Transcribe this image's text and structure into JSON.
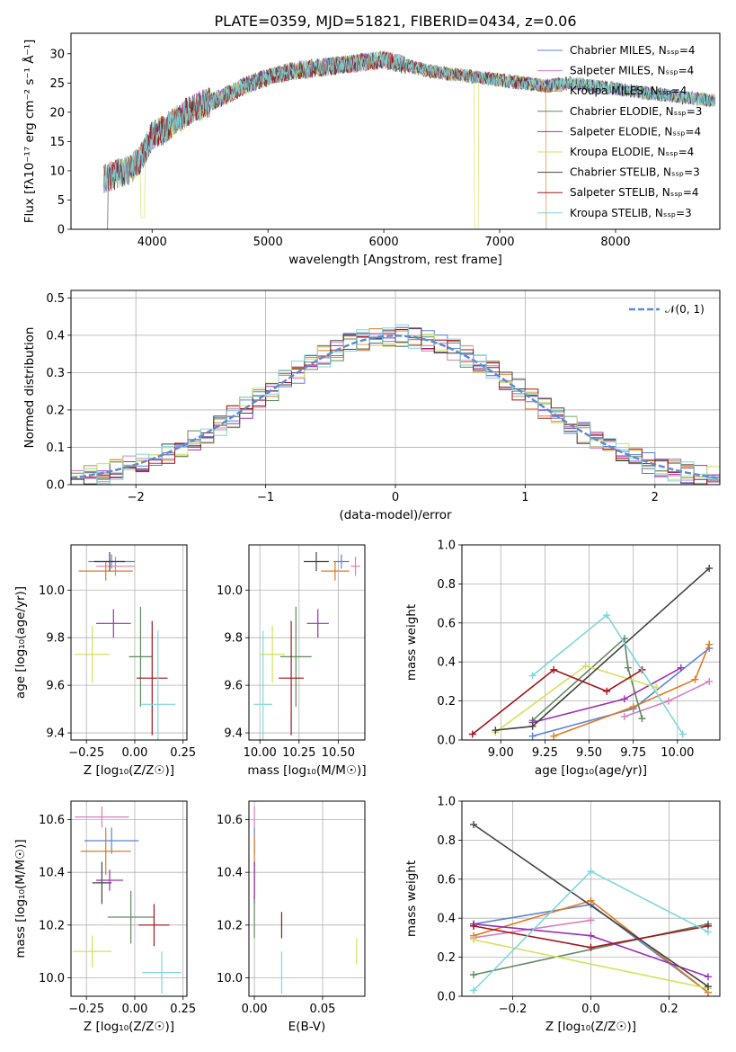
{
  "chart_data": [
    {
      "id": "spectrum",
      "type": "line",
      "title": "PLATE=0359, MJD=51821, FIBERID=0434, z=0.06",
      "xlabel": "wavelength [Angstrom, rest frame]",
      "ylabel": "Flux [fλ10⁻¹⁷ erg cm⁻² s⁻¹ Å⁻¹]",
      "xlim": [
        3300,
        8900
      ],
      "ylim": [
        0,
        33.5
      ],
      "xticks": [
        "4000",
        "5000",
        "6000",
        "7000",
        "8000"
      ],
      "yticks": [
        "0",
        "5",
        "10",
        "15",
        "20",
        "25",
        "30"
      ],
      "grid": false,
      "legend_position": "top-right",
      "data_wavelength_range": [
        3580,
        8860
      ],
      "continuum": {
        "x": [
          3580,
          3700,
          3800,
          3900,
          3950,
          4000,
          4100,
          4200,
          4300,
          4400,
          4600,
          4800,
          5000,
          5200,
          5400,
          5600,
          5800,
          6000,
          6200,
          6400,
          6600,
          6800,
          7000,
          7200,
          7400,
          7600,
          7800,
          8000,
          8200,
          8400,
          8600,
          8860
        ],
        "y": [
          8.5,
          9.5,
          10,
          12,
          14,
          16,
          17,
          18.5,
          20,
          21,
          22.5,
          24.5,
          26,
          27,
          27.5,
          28,
          28.5,
          29,
          28,
          27,
          26.5,
          26,
          25.5,
          25,
          24.5,
          25,
          24.5,
          24,
          23.5,
          23,
          22.5,
          22
        ]
      },
      "series": [
        {
          "name": "Chabrier MILES, Nₛₛₚ=4",
          "color": "#5b84d6"
        },
        {
          "name": "Salpeter MILES, Nₛₛₚ=4",
          "color": "#d77fbe"
        },
        {
          "name": "Kroupa MILES, Nₛₛₚ=4",
          "color": "#e07b22"
        },
        {
          "name": "Chabrier ELODIE, Nₛₛₚ=3",
          "color": "#5f8a5f"
        },
        {
          "name": "Salpeter ELODIE, Nₛₛₚ=4",
          "color": "#9b30b5"
        },
        {
          "name": "Kroupa ELODIE, Nₛₛₚ=4",
          "color": "#d4e25a"
        },
        {
          "name": "Chabrier STELIB, Nₛₛₚ=3",
          "color": "#444444"
        },
        {
          "name": "Salpeter STELIB, Nₛₛₚ=4",
          "color": "#a3141c"
        },
        {
          "name": "Kroupa STELIB, Nₛₛₚ=3",
          "color": "#7fd6de"
        }
      ]
    },
    {
      "id": "residuals",
      "type": "line",
      "xlabel": "(data-model)/error",
      "ylabel": "Normed distribution",
      "xlim": [
        -2.5,
        2.5
      ],
      "ylim": [
        0,
        0.52
      ],
      "xticks": [
        "−2",
        "−1",
        "0",
        "1",
        "2"
      ],
      "yticks": [
        "0.0",
        "0.1",
        "0.2",
        "0.3",
        "0.4",
        "0.5"
      ],
      "grid": true,
      "legend_position": "top-right",
      "legend": "𝒩(0, 1)",
      "gaussian": {
        "mean": 0,
        "sigma": 1
      }
    },
    {
      "id": "age-vs-z",
      "type": "scatter",
      "xlabel": "Z [log₁₀(Z/Z☉)]",
      "ylabel": "age  [log₁₀(age/yr)]",
      "xlim": [
        -0.33,
        0.27
      ],
      "ylim": [
        9.37,
        10.19
      ],
      "xticks": [
        "−0.25",
        "0.00",
        "0.25"
      ],
      "yticks": [
        "9.4",
        "9.6",
        "9.8",
        "10.0"
      ],
      "grid": true,
      "points": [
        {
          "x": -0.12,
          "xerr": 0.12,
          "y": 10.12,
          "yerr": 0.03,
          "color": "#5b84d6"
        },
        {
          "x": -0.1,
          "xerr": 0.1,
          "y": 10.1,
          "yerr": 0.04,
          "color": "#d77fbe"
        },
        {
          "x": -0.15,
          "xerr": 0.14,
          "y": 10.08,
          "yerr": 0.04,
          "color": "#e07b22"
        },
        {
          "x": -0.13,
          "xerr": 0.08,
          "y": 10.12,
          "yerr": 0.04,
          "color": "#444444"
        },
        {
          "x": 0.03,
          "xerr": 0.06,
          "y": 9.72,
          "yerr": 0.21,
          "color": "#5f8a5f"
        },
        {
          "x": -0.11,
          "xerr": 0.09,
          "y": 9.86,
          "yerr": 0.06,
          "color": "#9b30b5"
        },
        {
          "x": -0.22,
          "xerr": 0.09,
          "y": 9.73,
          "yerr": 0.12,
          "color": "#d4e25a"
        },
        {
          "x": 0.09,
          "xerr": 0.08,
          "y": 9.63,
          "yerr": 0.24,
          "color": "#a3141c"
        },
        {
          "x": 0.12,
          "xerr": 0.09,
          "y": 9.52,
          "yerr": 0.31,
          "color": "#7fd6de"
        }
      ]
    },
    {
      "id": "age-vs-mass",
      "type": "scatter",
      "xlabel": "mass [log₁₀(M/M☉)]",
      "ylabel": "",
      "xlim": [
        9.93,
        10.67
      ],
      "ylim": [
        9.37,
        10.19
      ],
      "xticks": [
        "10.00",
        "10.25",
        "10.50"
      ],
      "yticks": [
        "9.4",
        "9.6",
        "9.8",
        "10.0"
      ],
      "grid": true,
      "points": [
        {
          "x": 10.52,
          "xerr": 0.05,
          "y": 10.12,
          "yerr": 0.03,
          "color": "#5b84d6"
        },
        {
          "x": 10.61,
          "xerr": 0.03,
          "y": 10.1,
          "yerr": 0.04,
          "color": "#d77fbe"
        },
        {
          "x": 10.48,
          "xerr": 0.09,
          "y": 10.08,
          "yerr": 0.04,
          "color": "#e07b22"
        },
        {
          "x": 10.36,
          "xerr": 0.08,
          "y": 10.12,
          "yerr": 0.04,
          "color": "#444444"
        },
        {
          "x": 10.23,
          "xerr": 0.1,
          "y": 9.72,
          "yerr": 0.21,
          "color": "#5f8a5f"
        },
        {
          "x": 10.37,
          "xerr": 0.07,
          "y": 9.86,
          "yerr": 0.06,
          "color": "#9b30b5"
        },
        {
          "x": 10.08,
          "xerr": 0.08,
          "y": 9.73,
          "yerr": 0.12,
          "color": "#d4e25a"
        },
        {
          "x": 10.2,
          "xerr": 0.08,
          "y": 9.63,
          "yerr": 0.24,
          "color": "#a3141c"
        },
        {
          "x": 10.02,
          "xerr": 0.06,
          "y": 9.52,
          "yerr": 0.31,
          "color": "#7fd6de"
        }
      ]
    },
    {
      "id": "weight-vs-age",
      "type": "line",
      "xlabel": "age  [log₁₀(age/yr)]",
      "ylabel": "mass weight",
      "xlim": [
        8.78,
        10.24
      ],
      "ylim": [
        0,
        1.0
      ],
      "xticks": [
        "9.00",
        "9.25",
        "9.50",
        "9.75",
        "10.00"
      ],
      "yticks": [
        "0.0",
        "0.2",
        "0.4",
        "0.6",
        "0.8",
        "1.0"
      ],
      "grid": true,
      "series": [
        {
          "name": "Chabrier MILES",
          "color": "#5b84d6",
          "x": [
            9.18,
            9.75,
            10.18
          ],
          "y": [
            0.02,
            0.16,
            0.47
          ]
        },
        {
          "name": "Salpeter MILES",
          "color": "#d77fbe",
          "x": [
            9.7,
            9.95,
            10.18
          ],
          "y": [
            0.12,
            0.2,
            0.3
          ]
        },
        {
          "name": "Kroupa MILES",
          "color": "#e07b22",
          "x": [
            9.3,
            9.75,
            10.1,
            10.18
          ],
          "y": [
            0.02,
            0.17,
            0.31,
            0.49
          ]
        },
        {
          "name": "Chabrier ELODIE",
          "color": "#5f8a5f",
          "x": [
            9.18,
            9.7,
            9.72,
            9.8
          ],
          "y": [
            0.1,
            0.52,
            0.37,
            0.11
          ]
        },
        {
          "name": "Salpeter ELODIE",
          "color": "#9b30b5",
          "x": [
            9.18,
            9.7,
            10.02
          ],
          "y": [
            0.09,
            0.21,
            0.37
          ]
        },
        {
          "name": "Kroupa ELODIE",
          "color": "#d4e25a",
          "x": [
            8.97,
            9.48,
            9.88
          ],
          "y": [
            0.04,
            0.38,
            0.27
          ]
        },
        {
          "name": "Chabrier STELIB",
          "color": "#444444",
          "x": [
            8.97,
            9.18,
            10.18
          ],
          "y": [
            0.05,
            0.07,
            0.88
          ]
        },
        {
          "name": "Salpeter STELIB",
          "color": "#a3141c",
          "x": [
            8.84,
            9.3,
            9.6,
            9.8
          ],
          "y": [
            0.03,
            0.36,
            0.25,
            0.36
          ]
        },
        {
          "name": "Kroupa STELIB",
          "color": "#7fd6de",
          "x": [
            9.18,
            9.6,
            10.03
          ],
          "y": [
            0.33,
            0.64,
            0.03
          ]
        }
      ]
    },
    {
      "id": "mass-vs-z",
      "type": "scatter",
      "xlabel": "Z [log₁₀(Z/Z☉)]",
      "ylabel": "mass [log₁₀(M/M☉)]",
      "xlim": [
        -0.33,
        0.27
      ],
      "ylim": [
        9.93,
        10.67
      ],
      "xticks": [
        "−0.25",
        "0.00",
        "0.25"
      ],
      "yticks": [
        "10.0",
        "10.2",
        "10.4",
        "10.6"
      ],
      "grid": true,
      "points": [
        {
          "x": -0.12,
          "xerr": 0.14,
          "y": 10.52,
          "yerr": 0.05,
          "color": "#5b84d6"
        },
        {
          "x": -0.17,
          "xerr": 0.14,
          "y": 10.61,
          "yerr": 0.04,
          "color": "#d77fbe"
        },
        {
          "x": -0.15,
          "xerr": 0.13,
          "y": 10.48,
          "yerr": 0.09,
          "color": "#e07b22"
        },
        {
          "x": -0.17,
          "xerr": 0.05,
          "y": 10.36,
          "yerr": 0.08,
          "color": "#444444"
        },
        {
          "x": -0.02,
          "xerr": 0.12,
          "y": 10.23,
          "yerr": 0.1,
          "color": "#5f8a5f"
        },
        {
          "x": -0.13,
          "xerr": 0.07,
          "y": 10.37,
          "yerr": 0.04,
          "color": "#9b30b5"
        },
        {
          "x": -0.22,
          "xerr": 0.1,
          "y": 10.1,
          "yerr": 0.06,
          "color": "#d4e25a"
        },
        {
          "x": 0.1,
          "xerr": 0.08,
          "y": 10.2,
          "yerr": 0.08,
          "color": "#a3141c"
        },
        {
          "x": 0.14,
          "xerr": 0.1,
          "y": 10.02,
          "yerr": 0.08,
          "color": "#7fd6de"
        }
      ]
    },
    {
      "id": "mass-vs-ebv",
      "type": "scatter",
      "xlabel": "E(B-V)",
      "ylabel": "",
      "xlim": [
        -0.004,
        0.081
      ],
      "ylim": [
        9.93,
        10.67
      ],
      "xticks": [
        "0.00",
        "0.05"
      ],
      "yticks": [
        "10.0",
        "10.2",
        "10.4",
        "10.6"
      ],
      "grid": true,
      "points": [
        {
          "x": 0.0,
          "xerr": 0,
          "y": 10.52,
          "yerr": 0.05,
          "color": "#5b84d6"
        },
        {
          "x": 0.0,
          "xerr": 0,
          "y": 10.61,
          "yerr": 0.04,
          "color": "#d77fbe"
        },
        {
          "x": 0.0,
          "xerr": 0,
          "y": 10.48,
          "yerr": 0.06,
          "color": "#e07b22"
        },
        {
          "x": 0.0,
          "xerr": 0,
          "y": 10.36,
          "yerr": 0.08,
          "color": "#444444"
        },
        {
          "x": 0.0,
          "xerr": 0,
          "y": 10.23,
          "yerr": 0.08,
          "color": "#5f8a5f"
        },
        {
          "x": 0.0,
          "xerr": 0,
          "y": 10.37,
          "yerr": 0.07,
          "color": "#9b30b5"
        },
        {
          "x": 0.075,
          "xerr": 0,
          "y": 10.1,
          "yerr": 0.05,
          "color": "#d4e25a"
        },
        {
          "x": 0.02,
          "xerr": 0,
          "y": 10.2,
          "yerr": 0.05,
          "color": "#a3141c"
        },
        {
          "x": 0.02,
          "xerr": 0,
          "y": 10.02,
          "yerr": 0.08,
          "color": "#7fd6de"
        }
      ]
    },
    {
      "id": "weight-vs-z",
      "type": "line",
      "xlabel": "Z [log₁₀(Z/Z☉)]",
      "ylabel": "mass weight",
      "xlim": [
        -0.33,
        0.33
      ],
      "ylim": [
        0,
        1.0
      ],
      "xticks": [
        "−0.2",
        "0.0",
        "0.2"
      ],
      "yticks": [
        "0.0",
        "0.2",
        "0.4",
        "0.6",
        "0.8",
        "1.0"
      ],
      "grid": true,
      "series": [
        {
          "name": "Chabrier MILES",
          "color": "#5b84d6",
          "x": [
            -0.3,
            0.0,
            0.3
          ],
          "y": [
            0.37,
            0.47,
            0.02
          ]
        },
        {
          "name": "Salpeter MILES",
          "color": "#d77fbe",
          "x": [
            -0.3,
            0.0
          ],
          "y": [
            0.3,
            0.39
          ]
        },
        {
          "name": "Kroupa MILES",
          "color": "#e07b22",
          "x": [
            -0.3,
            0.0,
            0.3
          ],
          "y": [
            0.31,
            0.49,
            0.02
          ]
        },
        {
          "name": "Chabrier ELODIE",
          "color": "#5f8a5f",
          "x": [
            -0.3,
            0.3
          ],
          "y": [
            0.11,
            0.37
          ]
        },
        {
          "name": "Salpeter ELODIE",
          "color": "#9b30b5",
          "x": [
            -0.3,
            0.0,
            0.3
          ],
          "y": [
            0.37,
            0.31,
            0.1
          ]
        },
        {
          "name": "Kroupa ELODIE",
          "color": "#d4e25a",
          "x": [
            -0.3,
            0.3
          ],
          "y": [
            0.29,
            0.04
          ]
        },
        {
          "name": "Chabrier STELIB",
          "color": "#444444",
          "x": [
            -0.3,
            0.3
          ],
          "y": [
            0.88,
            0.05
          ]
        },
        {
          "name": "Salpeter STELIB",
          "color": "#a3141c",
          "x": [
            -0.3,
            0.0,
            0.3
          ],
          "y": [
            0.36,
            0.25,
            0.36
          ]
        },
        {
          "name": "Kroupa STELIB",
          "color": "#7fd6de",
          "x": [
            -0.3,
            0.0,
            0.3
          ],
          "y": [
            0.03,
            0.64,
            0.33
          ]
        }
      ]
    }
  ]
}
